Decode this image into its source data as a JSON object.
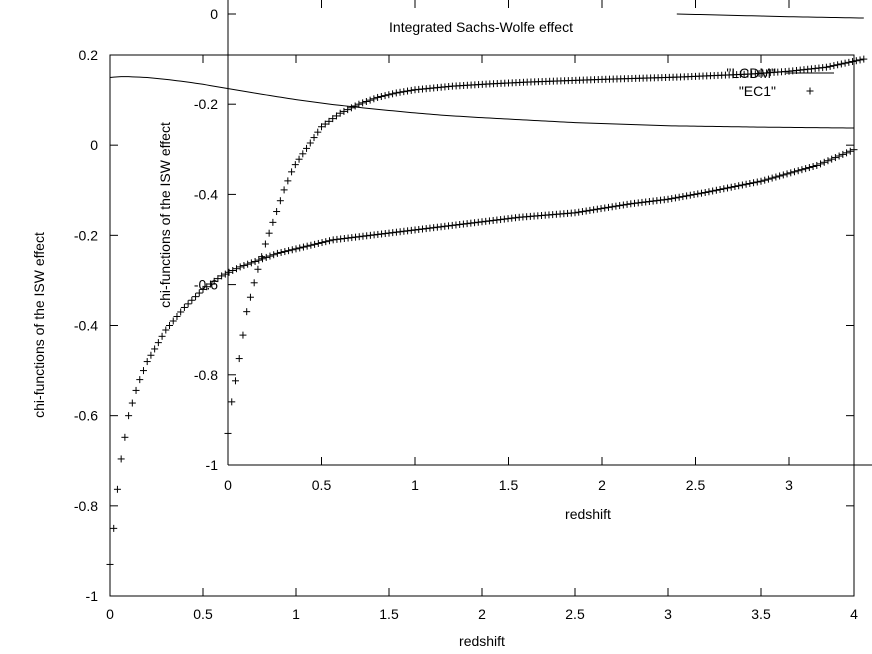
{
  "chart_data": [
    {
      "type": "line",
      "title": "",
      "xlabel": "redshift",
      "ylabel": "chi-functions of the ISW effect",
      "xlim": [
        0,
        4
      ],
      "ylim": [
        -1,
        0.2
      ],
      "xticks": [
        "0",
        "0.5",
        "1",
        "1.5",
        "2",
        "2.5",
        "3",
        "3.5",
        "4"
      ],
      "yticks": [
        "-1",
        "-0.8",
        "-0.6",
        "-0.4",
        "-0.2",
        "0",
        "0.2"
      ],
      "legend": {
        "placement": "top-right"
      },
      "series": [
        {
          "name": "\"LCDM\"",
          "style": "line",
          "x": [
            0,
            0.05,
            0.1,
            0.2,
            0.3,
            0.4,
            0.5,
            0.6,
            0.7,
            0.8,
            1.0,
            1.2,
            1.4,
            1.6,
            1.8,
            2.0,
            2.5,
            3.0,
            3.5,
            4.0
          ],
          "y": [
            0.15,
            0.152,
            0.152,
            0.15,
            0.146,
            0.141,
            0.135,
            0.128,
            0.121,
            0.114,
            0.101,
            0.09,
            0.081,
            0.073,
            0.066,
            0.061,
            0.05,
            0.043,
            0.04,
            0.038
          ]
        },
        {
          "name": "\"EC1\"",
          "style": "points",
          "x": [
            0,
            0.02,
            0.05,
            0.1,
            0.15,
            0.2,
            0.3,
            0.4,
            0.5,
            0.6,
            0.7,
            0.8,
            0.9,
            1.0,
            1.2,
            1.4,
            1.6,
            1.8,
            2.0,
            2.2,
            2.5,
            2.8,
            3.0,
            3.2,
            3.5,
            3.8,
            4.0
          ],
          "y": [
            -0.93,
            -0.85,
            -0.72,
            -0.6,
            -0.53,
            -0.48,
            -0.41,
            -0.36,
            -0.32,
            -0.29,
            -0.27,
            -0.255,
            -0.24,
            -0.23,
            -0.21,
            -0.2,
            -0.19,
            -0.18,
            -0.17,
            -0.16,
            -0.15,
            -0.13,
            -0.12,
            -0.105,
            -0.08,
            -0.045,
            -0.01
          ]
        }
      ]
    },
    {
      "type": "line",
      "title": "Integrated Sachs-Wolfe effect",
      "xlabel": "redshift",
      "ylabel": "chi-functions of the ISW effect",
      "xlim": [
        0,
        3.4
      ],
      "ylim": [
        -1,
        0
      ],
      "xticks": [
        "0",
        "0.5",
        "1",
        "1.5",
        "2",
        "2.5",
        "3"
      ],
      "yticks": [
        "-1",
        "-0.8",
        "-0.6",
        "-0.4",
        "-0.2",
        "0"
      ],
      "series": [
        {
          "style": "line",
          "x": [
            2.4,
            2.7,
            3.0,
            3.4
          ],
          "y": [
            0.0,
            -0.003,
            -0.006,
            -0.009
          ]
        },
        {
          "style": "points",
          "x": [
            0,
            0.02,
            0.05,
            0.1,
            0.15,
            0.2,
            0.25,
            0.3,
            0.35,
            0.4,
            0.5,
            0.6,
            0.7,
            0.8,
            0.9,
            1.0,
            1.2,
            1.4,
            1.6,
            1.8,
            2.0,
            2.4,
            2.8,
            3.0,
            3.2,
            3.4
          ],
          "y": [
            -0.93,
            -0.86,
            -0.79,
            -0.66,
            -0.58,
            -0.51,
            -0.45,
            -0.39,
            -0.34,
            -0.31,
            -0.25,
            -0.22,
            -0.2,
            -0.185,
            -0.175,
            -0.168,
            -0.16,
            -0.155,
            -0.151,
            -0.148,
            -0.145,
            -0.14,
            -0.133,
            -0.127,
            -0.118,
            -0.1
          ]
        }
      ]
    }
  ]
}
